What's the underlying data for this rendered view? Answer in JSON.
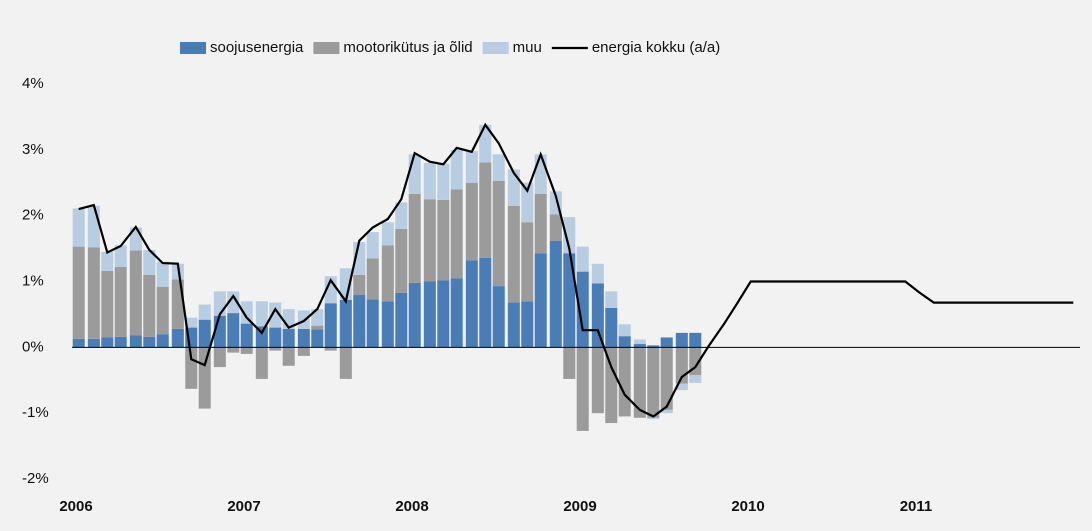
{
  "chart_data": {
    "type": "bar_line",
    "x": [
      2006.04,
      2006.13,
      2006.21,
      2006.29,
      2006.38,
      2006.46,
      2006.54,
      2006.63,
      2006.71,
      2006.79,
      2006.88,
      2006.96,
      2007.04,
      2007.13,
      2007.21,
      2007.29,
      2007.38,
      2007.46,
      2007.54,
      2007.63,
      2007.71,
      2007.79,
      2007.88,
      2007.96,
      2008.04,
      2008.13,
      2008.21,
      2008.29,
      2008.38,
      2008.46,
      2008.54,
      2008.63,
      2008.71,
      2008.79,
      2008.88,
      2008.96,
      2009.04,
      2009.13,
      2009.21,
      2009.29,
      2009.38,
      2009.46,
      2009.54,
      2009.63,
      2009.71,
      2009.79,
      2009.88,
      2009.96,
      2010.04,
      2010.13,
      2010.21,
      2010.29,
      2010.38,
      2010.46,
      2010.54,
      2010.63,
      2010.71,
      2010.79,
      2010.88,
      2010.96,
      2011.04,
      2011.13,
      2011.21,
      2011.29,
      2011.38,
      2011.46,
      2011.54,
      2011.63,
      2011.71,
      2011.79,
      2011.88,
      2011.96
    ],
    "series": [
      {
        "name": "soojusenergia",
        "color": "#4a7db6",
        "values": [
          0.13,
          0.13,
          0.15,
          0.16,
          0.18,
          0.16,
          0.2,
          0.28,
          0.3,
          0.42,
          0.48,
          0.52,
          0.36,
          0.32,
          0.3,
          0.28,
          0.28,
          0.27,
          0.67,
          0.72,
          0.8,
          0.73,
          0.7,
          0.83,
          0.98,
          1.0,
          1.02,
          1.05,
          1.32,
          1.36,
          0.93,
          0.68,
          0.7,
          1.43,
          1.62,
          1.43,
          1.15,
          0.97,
          0.6,
          0.17,
          0.05,
          0.03,
          0.15,
          0.22,
          0.22,
          null,
          null,
          null,
          null,
          null,
          null,
          null,
          null,
          null,
          null,
          null,
          null,
          null,
          null,
          null,
          null,
          null,
          null,
          null,
          null,
          null,
          null,
          null,
          null,
          null,
          null,
          null
        ]
      },
      {
        "name": "mootorikütus ja õlid",
        "color": "#9b9b9b",
        "values": [
          1.4,
          1.39,
          1.01,
          1.06,
          1.29,
          0.94,
          0.72,
          0.75,
          -0.63,
          -0.93,
          -0.3,
          -0.08,
          -0.1,
          -0.48,
          -0.05,
          -0.28,
          -0.13,
          0.06,
          -0.05,
          -0.48,
          0.3,
          0.62,
          0.85,
          0.97,
          1.35,
          1.25,
          1.22,
          1.35,
          1.18,
          1.45,
          1.6,
          1.47,
          1.2,
          0.9,
          0.4,
          -0.48,
          -1.27,
          -1.0,
          -1.15,
          -1.05,
          -1.07,
          -1.07,
          -0.95,
          -0.55,
          -0.42,
          null,
          null,
          null,
          null,
          null,
          null,
          null,
          null,
          null,
          null,
          null,
          null,
          null,
          null,
          null,
          null,
          null,
          null,
          null,
          null,
          null,
          null,
          null,
          null,
          null,
          null,
          null
        ]
      },
      {
        "name": "muu",
        "color": "#b8cce2",
        "values": [
          0.58,
          0.63,
          0.29,
          0.33,
          0.35,
          0.38,
          0.38,
          0.24,
          0.15,
          0.23,
          0.37,
          0.33,
          0.34,
          0.38,
          0.38,
          0.3,
          0.28,
          0.25,
          0.41,
          0.48,
          0.5,
          0.4,
          0.35,
          0.4,
          0.6,
          0.55,
          0.55,
          0.6,
          0.48,
          0.57,
          0.4,
          0.55,
          0.6,
          0.6,
          0.35,
          0.55,
          0.38,
          0.3,
          0.25,
          0.18,
          0.07,
          -0.02,
          -0.05,
          -0.1,
          -0.12,
          null,
          null,
          null,
          null,
          null,
          null,
          null,
          null,
          null,
          null,
          null,
          null,
          null,
          null,
          null,
          null,
          null,
          null,
          null,
          null,
          null,
          null,
          null,
          null,
          null,
          null,
          null
        ]
      },
      {
        "name": "energia kokku (a/a)",
        "color": "#000000",
        "type": "line",
        "values": [
          2.1,
          2.16,
          1.44,
          1.54,
          1.83,
          1.48,
          1.28,
          1.27,
          -0.18,
          -0.27,
          0.5,
          0.78,
          0.45,
          0.22,
          0.58,
          0.3,
          0.4,
          0.58,
          1.02,
          0.7,
          1.62,
          1.82,
          1.95,
          2.25,
          2.95,
          2.82,
          2.78,
          3.03,
          2.97,
          3.38,
          3.1,
          2.65,
          2.38,
          2.93,
          2.3,
          1.5,
          0.26,
          0.26,
          -0.3,
          -0.72,
          -0.95,
          -1.05,
          -0.9,
          -0.45,
          -0.3,
          0.02,
          0.35,
          0.67,
          1.0,
          1.0,
          1.0,
          1.0,
          1.0,
          1.0,
          1.0,
          1.0,
          1.0,
          1.0,
          1.0,
          1.0,
          0.84,
          0.68,
          0.68,
          0.68,
          0.68,
          0.68,
          0.68,
          0.68,
          0.68,
          0.68,
          0.68,
          0.68
        ]
      }
    ],
    "xlim": [
      2006,
      2012
    ],
    "xticks": [
      2006,
      2007,
      2008,
      2009,
      2010,
      2011
    ],
    "ylim": [
      -2,
      4
    ],
    "yticks": [
      {
        "value": -2,
        "label": "-2%"
      },
      {
        "value": -1,
        "label": "-1%"
      },
      {
        "value": 0,
        "label": "0%"
      },
      {
        "value": 1,
        "label": "1%"
      },
      {
        "value": 2,
        "label": "2%"
      },
      {
        "value": 3,
        "label": "3%"
      },
      {
        "value": 4,
        "label": "4%"
      }
    ],
    "grid": false,
    "legend": "top"
  }
}
